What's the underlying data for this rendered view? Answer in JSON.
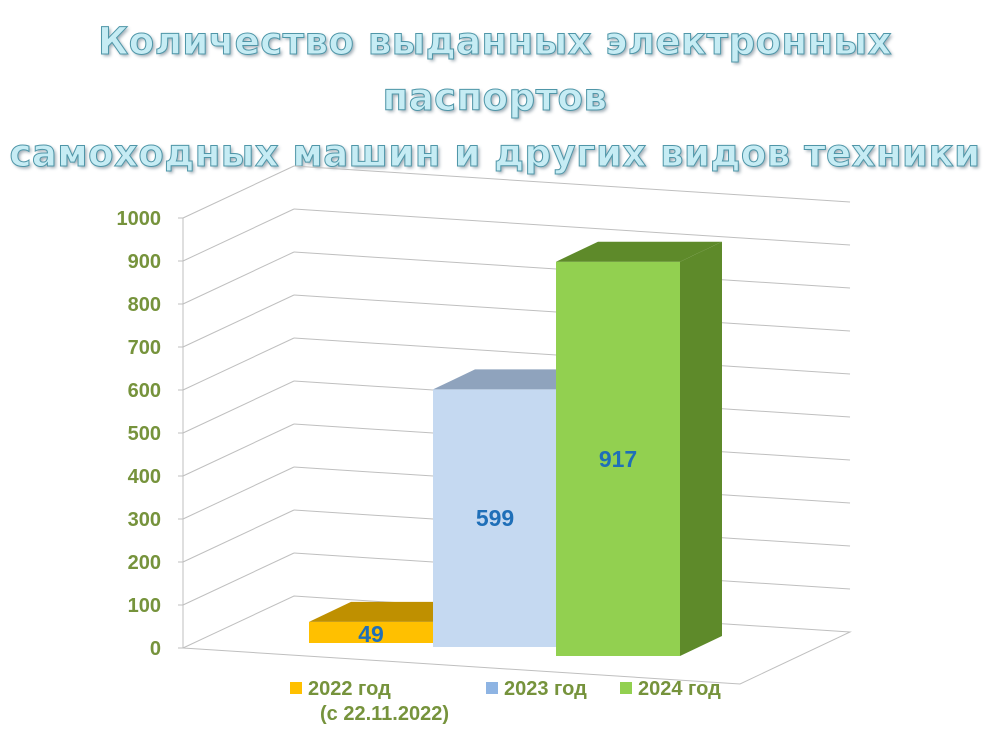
{
  "title": {
    "line1": "Количество выданных электронных паспортов",
    "line2": "самоходных машин и других видов техники"
  },
  "colors": {
    "title_fill": "#c6ecf4",
    "axis_label": "#76933c",
    "data_label": "#1f6fb8"
  },
  "chart_data": {
    "type": "bar",
    "style": "3d-column",
    "categories": [
      "2022 год (с 22.11.2022)",
      "2023 год",
      "2024 год"
    ],
    "values": [
      49,
      599,
      917
    ],
    "data_labels": [
      "49",
      "599",
      "917"
    ],
    "ylim": [
      0,
      1000
    ],
    "yticks": [
      "0",
      "100",
      "200",
      "300",
      "400",
      "500",
      "600",
      "700",
      "800",
      "900",
      "1000"
    ],
    "grid": true,
    "legend_position": "bottom",
    "series_colors": [
      "#ffc000",
      "#c5d9f1",
      "#92d050"
    ],
    "series_shade_colors": [
      "#bf9000",
      "#8fa3bd",
      "#5e8a2a"
    ],
    "legend": [
      {
        "label": "2022 год",
        "sub": "(с 22.11.2022)",
        "color": "#ffc000"
      },
      {
        "label": "2023 год",
        "sub": "",
        "color": "#8eb4e3"
      },
      {
        "label": "2024 год",
        "sub": "",
        "color": "#92d050"
      }
    ]
  }
}
